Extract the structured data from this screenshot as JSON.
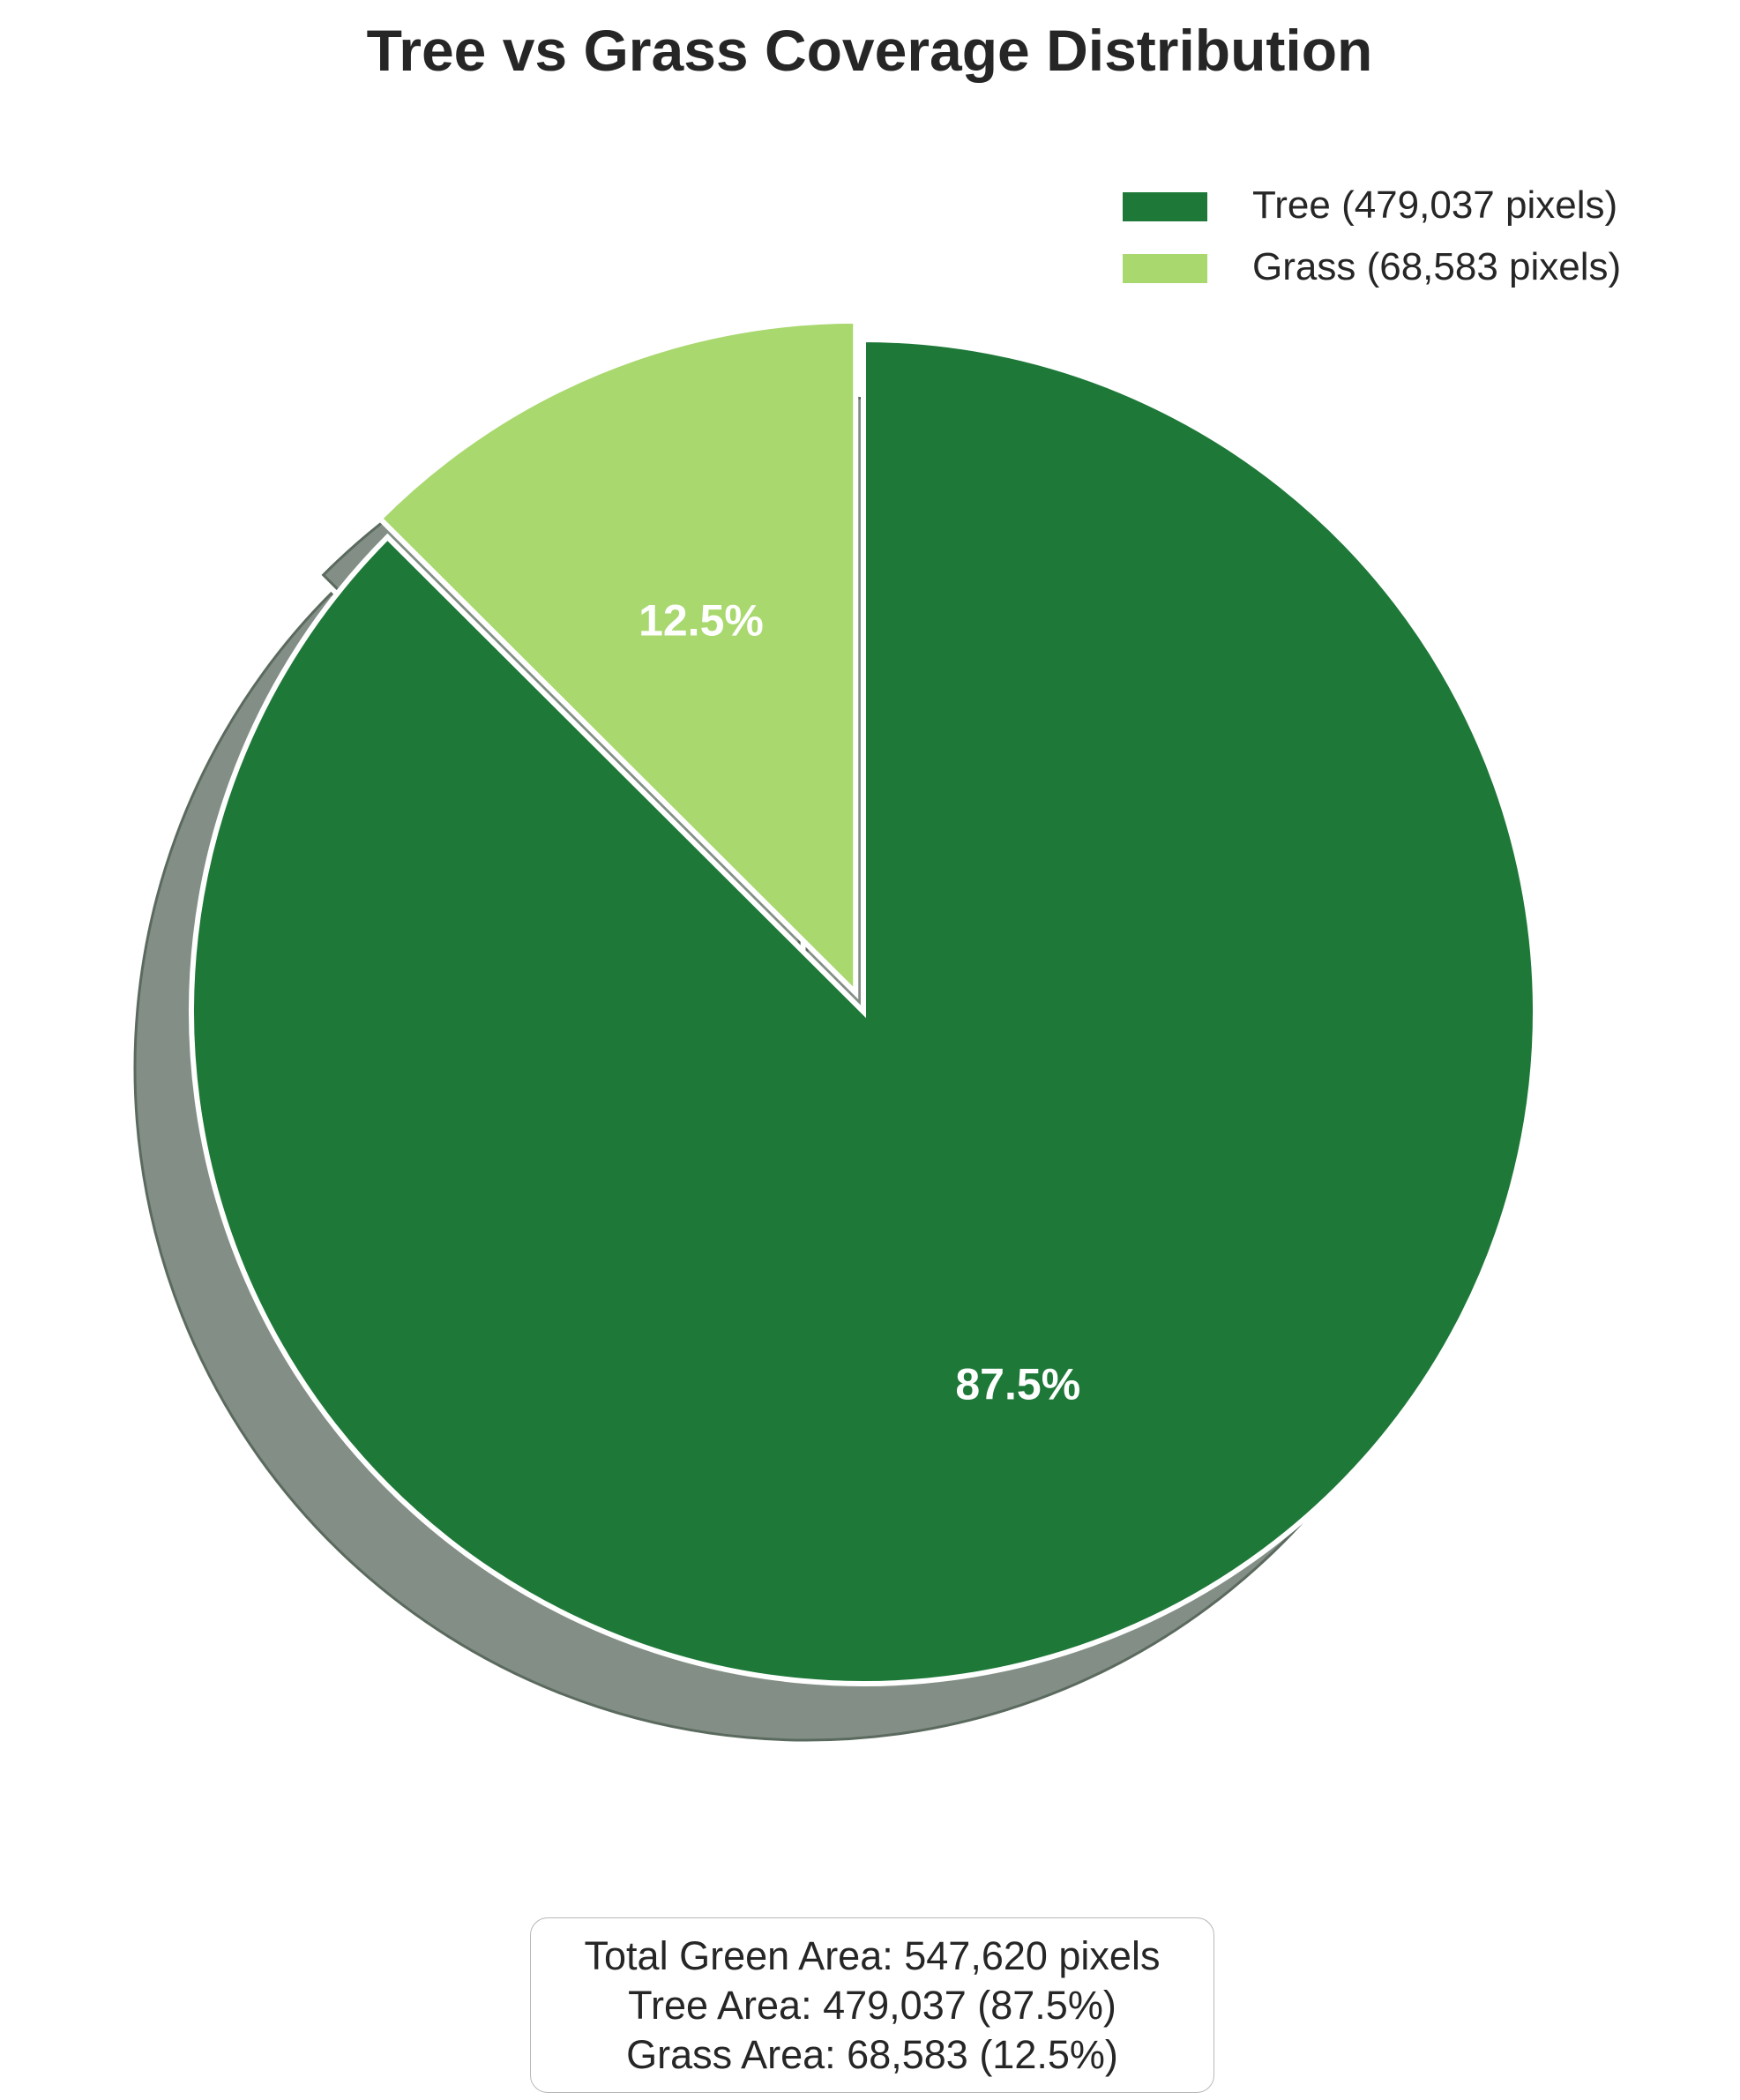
{
  "chart_data": {
    "type": "pie",
    "title": "Tree vs Grass Coverage Distribution",
    "slices": [
      {
        "name": "Tree",
        "legend_label": "Tree (479,037 pixels)",
        "value": 479037,
        "percent_label": "87.5%",
        "color": "#1e7838",
        "exploded": false
      },
      {
        "name": "Grass",
        "legend_label": "Grass (68,583 pixels)",
        "value": 68583,
        "percent_label": "12.5%",
        "color": "#a8d86e",
        "exploded": true
      }
    ],
    "start_angle": "90 degrees (top), clockwise",
    "shadow": true,
    "shadow_color": "#838f86",
    "legend_position": "top-right",
    "summary": {
      "line1": "Total Green Area: 547,620 pixels",
      "line2": "Tree Area: 479,037 (87.5%)",
      "line3": "Grass Area: 68,583 (12.5%)"
    }
  }
}
